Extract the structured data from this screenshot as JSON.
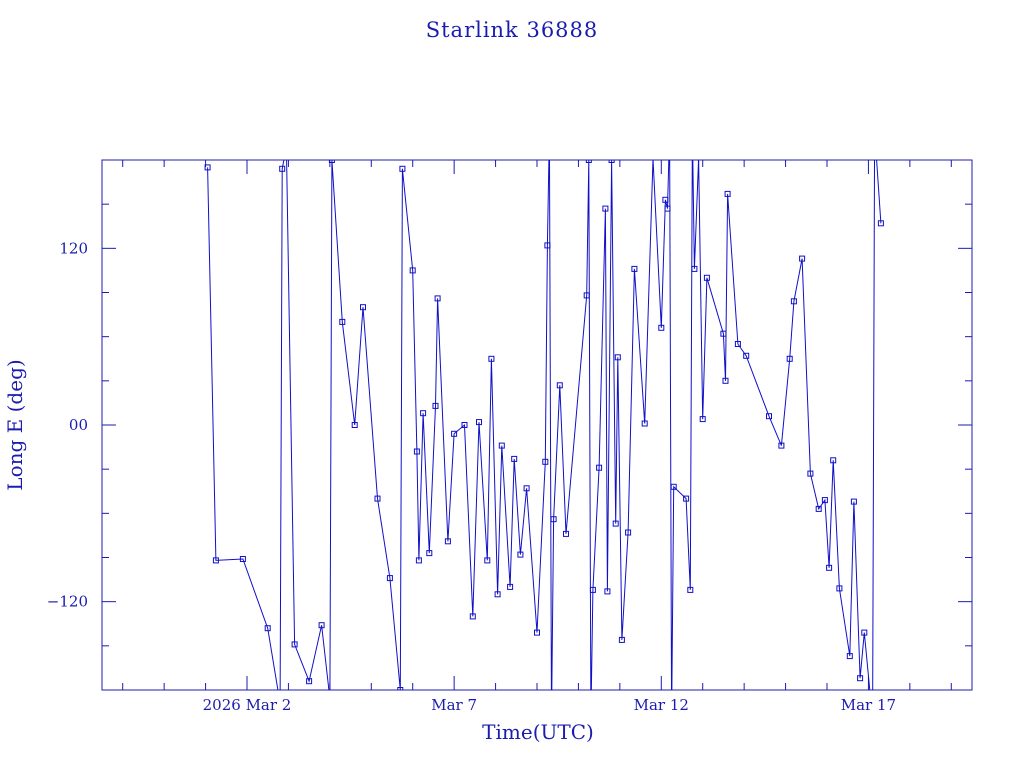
{
  "colors": {
    "line": "#1010c8",
    "axis": "#1b1bb0",
    "text": "#1b1bb0",
    "background": "#ffffff"
  },
  "chart_data": {
    "type": "line",
    "title": "Starlink 36888",
    "xlabel": "Time(UTC)",
    "ylabel": "Long E (deg)",
    "x_range_days_from_mar1": [
      -2.5,
      18.5
    ],
    "ylim": [
      -180,
      180
    ],
    "x_ticks": [
      {
        "label": "2026 Mar  2",
        "day": 1
      },
      {
        "label": "Mar  7",
        "day": 6
      },
      {
        "label": "Mar 12",
        "day": 11
      },
      {
        "label": "Mar 17",
        "day": 16
      }
    ],
    "y_ticks": [
      {
        "label": "120",
        "value": 120
      },
      {
        "label": "00",
        "value": 0
      },
      {
        "label": "−120",
        "value": -120
      }
    ],
    "grid": false,
    "legend": "none",
    "points": [
      [
        0.05,
        175
      ],
      [
        0.25,
        -92
      ],
      [
        0.9,
        -91
      ],
      [
        1.5,
        -138
      ],
      [
        1.8,
        -189
      ],
      [
        1.85,
        174
      ],
      [
        1.95,
        189
      ],
      [
        2.15,
        -149
      ],
      [
        2.5,
        -174
      ],
      [
        2.8,
        -136
      ],
      [
        3.0,
        -186
      ],
      [
        3.05,
        180
      ],
      [
        3.3,
        70
      ],
      [
        3.6,
        0
      ],
      [
        3.8,
        80
      ],
      [
        4.15,
        -50
      ],
      [
        4.45,
        -104
      ],
      [
        4.7,
        -180
      ],
      [
        4.75,
        174
      ],
      [
        5.0,
        105
      ],
      [
        5.1,
        -18
      ],
      [
        5.15,
        -92
      ],
      [
        5.25,
        8
      ],
      [
        5.4,
        -87
      ],
      [
        5.55,
        13
      ],
      [
        5.6,
        86
      ],
      [
        5.85,
        -79
      ],
      [
        6.0,
        -6
      ],
      [
        6.25,
        0
      ],
      [
        6.45,
        -130
      ],
      [
        6.6,
        2
      ],
      [
        6.8,
        -92
      ],
      [
        6.9,
        45
      ],
      [
        7.05,
        -115
      ],
      [
        7.15,
        -14
      ],
      [
        7.35,
        -110
      ],
      [
        7.45,
        -23
      ],
      [
        7.6,
        -88
      ],
      [
        7.75,
        -43
      ],
      [
        8.0,
        -141
      ],
      [
        8.2,
        -25
      ],
      [
        8.25,
        122
      ],
      [
        8.3,
        200
      ],
      [
        8.35,
        -200
      ],
      [
        8.4,
        -64
      ],
      [
        8.55,
        27
      ],
      [
        8.7,
        -74
      ],
      [
        9.2,
        88
      ],
      [
        9.25,
        180
      ],
      [
        9.3,
        -200
      ],
      [
        9.35,
        -112
      ],
      [
        9.5,
        -29
      ],
      [
        9.65,
        147
      ],
      [
        9.7,
        -113
      ],
      [
        9.8,
        180
      ],
      [
        9.9,
        -67
      ],
      [
        9.95,
        46
      ],
      [
        10.05,
        -146
      ],
      [
        10.2,
        -73
      ],
      [
        10.35,
        106
      ],
      [
        10.6,
        1
      ],
      [
        10.8,
        181
      ],
      [
        11.0,
        66
      ],
      [
        11.1,
        153
      ],
      [
        11.15,
        147
      ],
      [
        11.2,
        200
      ],
      [
        11.25,
        -200
      ],
      [
        11.3,
        -42
      ],
      [
        11.6,
        -50
      ],
      [
        11.7,
        -112
      ],
      [
        11.75,
        200
      ],
      [
        11.8,
        106
      ],
      [
        11.9,
        181
      ],
      [
        12.0,
        4
      ],
      [
        12.1,
        100
      ],
      [
        12.5,
        62
      ],
      [
        12.55,
        30
      ],
      [
        12.6,
        157
      ],
      [
        12.85,
        55
      ],
      [
        13.05,
        47
      ],
      [
        13.6,
        6
      ],
      [
        13.9,
        -14
      ],
      [
        14.1,
        45
      ],
      [
        14.2,
        84
      ],
      [
        14.4,
        113
      ],
      [
        14.6,
        -33
      ],
      [
        14.8,
        -57
      ],
      [
        14.95,
        -51
      ],
      [
        15.05,
        -97
      ],
      [
        15.15,
        -24
      ],
      [
        15.3,
        -111
      ],
      [
        15.55,
        -157
      ],
      [
        15.65,
        -52
      ],
      [
        15.8,
        -172
      ],
      [
        15.9,
        -141
      ],
      [
        16.1,
        -200
      ],
      [
        16.15,
        200
      ],
      [
        16.3,
        137
      ]
    ]
  }
}
